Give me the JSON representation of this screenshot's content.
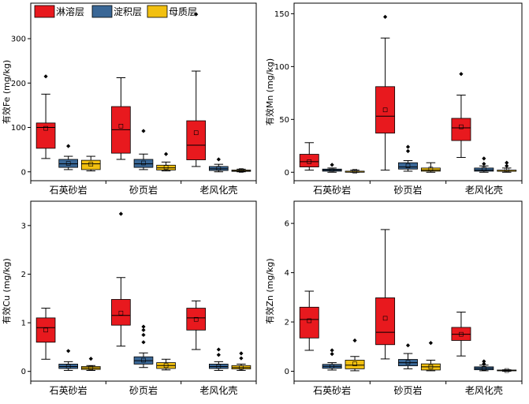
{
  "legend": [
    {
      "name": "淋溶层",
      "color": "#e8191e"
    },
    {
      "name": "淀积层",
      "color": "#3a6796"
    },
    {
      "name": "母质层",
      "color": "#f2c010"
    }
  ],
  "chart_data": [
    {
      "type": "box",
      "ylabel": "有效Fe (mg/kg)",
      "ylim": [
        -20,
        380
      ],
      "yticks": [
        0,
        100,
        200,
        300
      ],
      "categories": [
        "石英砂岩",
        "砂页岩",
        "老风化壳"
      ],
      "series": [
        {
          "name": "淋溶层",
          "boxes": [
            {
              "whislo": 30,
              "q1": 53,
              "med": 100,
              "q3": 110,
              "whishi": 175,
              "mean": 98,
              "fliers": [
                215
              ]
            },
            {
              "whislo": 28,
              "q1": 42,
              "med": 95,
              "q3": 147,
              "whishi": 212,
              "mean": 103,
              "fliers": []
            },
            {
              "whislo": 12,
              "q1": 27,
              "med": 60,
              "q3": 115,
              "whishi": 227,
              "mean": 88,
              "fliers": [
                355
              ]
            }
          ]
        },
        {
          "name": "淀积层",
          "boxes": [
            {
              "whislo": 5,
              "q1": 10,
              "med": 18,
              "q3": 28,
              "whishi": 35,
              "mean": 19,
              "fliers": [
                58
              ]
            },
            {
              "whislo": 5,
              "q1": 10,
              "med": 18,
              "q3": 28,
              "whishi": 40,
              "mean": 20,
              "fliers": [
                92
              ]
            },
            {
              "whislo": 0,
              "q1": 3,
              "med": 7,
              "q3": 12,
              "whishi": 17,
              "mean": 8,
              "fliers": [
                28
              ]
            }
          ]
        },
        {
          "name": "母质层",
          "boxes": [
            {
              "whislo": 2,
              "q1": 5,
              "med": 18,
              "q3": 26,
              "whishi": 35,
              "mean": 17,
              "fliers": []
            },
            {
              "whislo": 2,
              "q1": 4,
              "med": 9,
              "q3": 15,
              "whishi": 22,
              "mean": 10,
              "fliers": [
                40
              ]
            },
            {
              "whislo": 0,
              "q1": 1,
              "med": 2,
              "q3": 4,
              "whishi": 6,
              "mean": 3,
              "fliers": []
            }
          ]
        }
      ]
    },
    {
      "type": "box",
      "ylabel": "有效Mn (mg/kg)",
      "ylim": [
        -8,
        160
      ],
      "yticks": [
        0,
        50,
        100,
        150
      ],
      "categories": [
        "石英砂岩",
        "砂页岩",
        "老风化壳"
      ],
      "series": [
        {
          "name": "淋溶层",
          "boxes": [
            {
              "whislo": 2,
              "q1": 5,
              "med": 10,
              "q3": 17,
              "whishi": 28,
              "mean": 10,
              "fliers": []
            },
            {
              "whislo": 2,
              "q1": 37,
              "med": 53,
              "q3": 81,
              "whishi": 127,
              "mean": 59,
              "fliers": [
                147
              ]
            },
            {
              "whislo": 14,
              "q1": 30,
              "med": 42,
              "q3": 51,
              "whishi": 73,
              "mean": 43,
              "fliers": [
                93
              ]
            }
          ]
        },
        {
          "name": "淀积层",
          "boxes": [
            {
              "whislo": 0,
              "q1": 1,
              "med": 2,
              "q3": 3,
              "whishi": 4,
              "mean": 2,
              "fliers": [
                7
              ]
            },
            {
              "whislo": 1,
              "q1": 3,
              "med": 5,
              "q3": 9,
              "whishi": 11,
              "mean": 6,
              "fliers": [
                20,
                24
              ]
            },
            {
              "whislo": 0,
              "q1": 1,
              "med": 2,
              "q3": 4,
              "whishi": 6,
              "mean": 3,
              "fliers": [
                8,
                13
              ]
            }
          ]
        },
        {
          "name": "母质层",
          "boxes": [
            {
              "whislo": 0,
              "q1": 0,
              "med": 1,
              "q3": 1,
              "whishi": 2,
              "mean": 1,
              "fliers": []
            },
            {
              "whislo": 0,
              "q1": 1,
              "med": 2,
              "q3": 4,
              "whishi": 9,
              "mean": 3,
              "fliers": []
            },
            {
              "whislo": 0,
              "q1": 1,
              "med": 1,
              "q3": 2,
              "whishi": 4,
              "mean": 2,
              "fliers": [
                6,
                9
              ]
            }
          ]
        }
      ]
    },
    {
      "type": "box",
      "ylabel": "有效Cu (mg/kg)",
      "ylim": [
        -0.2,
        3.5
      ],
      "yticks": [
        0,
        1,
        2,
        3
      ],
      "categories": [
        "石英砂岩",
        "砂页岩",
        "老风化壳"
      ],
      "series": [
        {
          "name": "淋溶层",
          "boxes": [
            {
              "whislo": 0.25,
              "q1": 0.6,
              "med": 0.9,
              "q3": 1.1,
              "whishi": 1.3,
              "mean": 0.85,
              "fliers": []
            },
            {
              "whislo": 0.52,
              "q1": 0.95,
              "med": 1.15,
              "q3": 1.48,
              "whishi": 1.93,
              "mean": 1.2,
              "fliers": [
                3.24
              ]
            },
            {
              "whislo": 0.45,
              "q1": 0.85,
              "med": 1.1,
              "q3": 1.3,
              "whishi": 1.45,
              "mean": 1.07,
              "fliers": []
            }
          ]
        },
        {
          "name": "淀积层",
          "boxes": [
            {
              "whislo": 0.02,
              "q1": 0.06,
              "med": 0.1,
              "q3": 0.15,
              "whishi": 0.2,
              "mean": 0.1,
              "fliers": [
                0.42
              ]
            },
            {
              "whislo": 0.08,
              "q1": 0.15,
              "med": 0.22,
              "q3": 0.3,
              "whishi": 0.38,
              "mean": 0.23,
              "fliers": [
                0.6,
                0.75,
                0.85,
                0.92
              ]
            },
            {
              "whislo": 0.02,
              "q1": 0.06,
              "med": 0.1,
              "q3": 0.15,
              "whishi": 0.2,
              "mean": 0.1,
              "fliers": [
                0.34,
                0.45
              ]
            }
          ]
        },
        {
          "name": "母质层",
          "boxes": [
            {
              "whislo": 0.02,
              "q1": 0.04,
              "med": 0.07,
              "q3": 0.1,
              "whishi": 0.12,
              "mean": 0.07,
              "fliers": [
                0.26
              ]
            },
            {
              "whislo": 0.03,
              "q1": 0.06,
              "med": 0.12,
              "q3": 0.18,
              "whishi": 0.25,
              "mean": 0.12,
              "fliers": []
            },
            {
              "whislo": 0.02,
              "q1": 0.05,
              "med": 0.08,
              "q3": 0.12,
              "whishi": 0.15,
              "mean": 0.08,
              "fliers": [
                0.27,
                0.37
              ]
            }
          ]
        }
      ]
    },
    {
      "type": "box",
      "ylabel": "有效Zn (mg/kg)",
      "ylim": [
        -0.4,
        6.9
      ],
      "yticks": [
        0,
        2,
        4,
        6
      ],
      "categories": [
        "石英砂岩",
        "砂页岩",
        "老风化壳"
      ],
      "series": [
        {
          "name": "淋溶层",
          "boxes": [
            {
              "whislo": 0.85,
              "q1": 1.35,
              "med": 2.1,
              "q3": 2.6,
              "whishi": 3.25,
              "mean": 2.05,
              "fliers": []
            },
            {
              "whislo": 0.5,
              "q1": 1.08,
              "med": 1.58,
              "q3": 2.98,
              "whishi": 5.75,
              "mean": 2.15,
              "fliers": []
            },
            {
              "whislo": 0.62,
              "q1": 1.25,
              "med": 1.5,
              "q3": 1.78,
              "whishi": 2.4,
              "mean": 1.5,
              "fliers": []
            }
          ]
        },
        {
          "name": "淀积层",
          "boxes": [
            {
              "whislo": 0.05,
              "q1": 0.12,
              "med": 0.2,
              "q3": 0.28,
              "whishi": 0.35,
              "mean": 0.2,
              "fliers": [
                0.7,
                0.85
              ]
            },
            {
              "whislo": 0.1,
              "q1": 0.22,
              "med": 0.35,
              "q3": 0.48,
              "whishi": 0.72,
              "mean": 0.36,
              "fliers": [
                1.05
              ]
            },
            {
              "whislo": 0.02,
              "q1": 0.06,
              "med": 0.12,
              "q3": 0.18,
              "whishi": 0.25,
              "mean": 0.12,
              "fliers": [
                0.3,
                0.4
              ]
            }
          ]
        },
        {
          "name": "母质层",
          "boxes": [
            {
              "whislo": 0.02,
              "q1": 0.1,
              "med": 0.25,
              "q3": 0.45,
              "whishi": 0.6,
              "mean": 0.3,
              "fliers": [
                1.25
              ]
            },
            {
              "whislo": 0.02,
              "q1": 0.05,
              "med": 0.18,
              "q3": 0.3,
              "whishi": 0.45,
              "mean": 0.18,
              "fliers": [
                1.15
              ]
            },
            {
              "whislo": 0.0,
              "q1": 0.02,
              "med": 0.03,
              "q3": 0.05,
              "whishi": 0.06,
              "mean": 0.03,
              "fliers": []
            }
          ]
        }
      ]
    }
  ]
}
